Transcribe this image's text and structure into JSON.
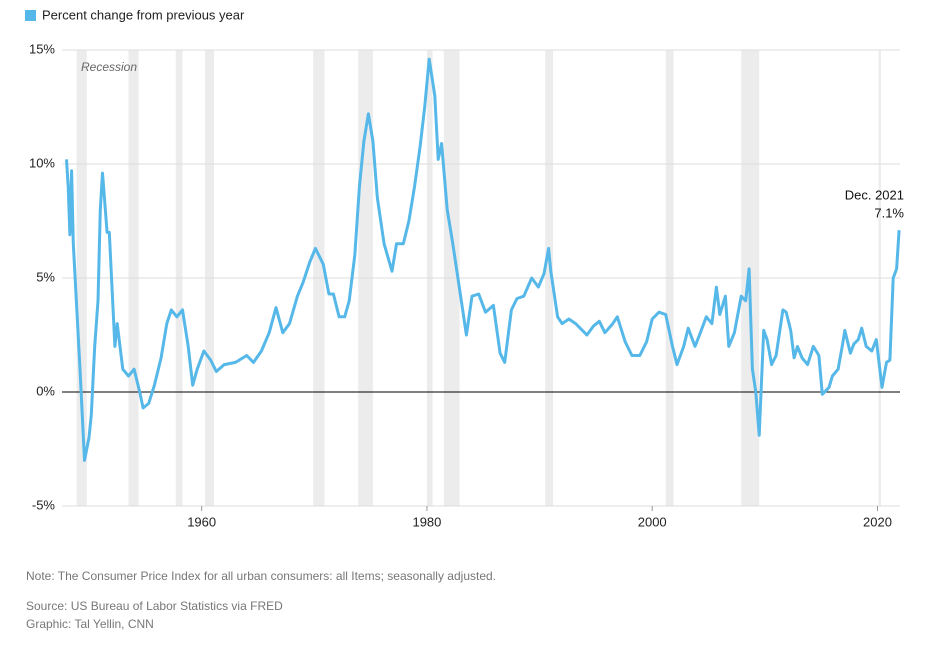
{
  "chart_data": {
    "type": "line",
    "legend_label": "Percent change from previous year",
    "series": [
      {
        "name": "Percent change from previous year",
        "color": "#56b8e8",
        "x": [
          1948.0,
          1948.15,
          1948.3,
          1948.45,
          1948.6,
          1949.2,
          1949.6,
          1950.0,
          1950.2,
          1950.5,
          1950.8,
          1951.0,
          1951.2,
          1951.6,
          1951.8,
          1952.3,
          1952.5,
          1953.0,
          1953.5,
          1954.0,
          1954.5,
          1954.8,
          1955.3,
          1955.8,
          1956.4,
          1956.9,
          1957.3,
          1957.8,
          1958.3,
          1958.8,
          1959.2,
          1959.6,
          1960.2,
          1960.8,
          1961.3,
          1962.0,
          1963.0,
          1964.0,
          1964.6,
          1965.3,
          1966.0,
          1966.6,
          1967.2,
          1967.8,
          1968.5,
          1969.0,
          1969.6,
          1970.1,
          1970.8,
          1971.3,
          1971.7,
          1972.2,
          1972.7,
          1973.1,
          1973.6,
          1974.0,
          1974.4,
          1974.8,
          1975.2,
          1975.6,
          1976.2,
          1976.9,
          1977.3,
          1977.9,
          1978.4,
          1978.9,
          1979.4,
          1979.8,
          1980.2,
          1980.7,
          1981.0,
          1981.3,
          1981.8,
          1982.3,
          1982.9,
          1983.5,
          1984.0,
          1984.6,
          1985.2,
          1985.9,
          1986.5,
          1986.9,
          1987.5,
          1988.0,
          1988.6,
          1989.3,
          1989.9,
          1990.4,
          1990.8,
          1991.0,
          1991.6,
          1992.0,
          1992.6,
          1993.2,
          1993.8,
          1994.2,
          1994.8,
          1995.3,
          1995.8,
          1996.5,
          1996.9,
          1997.6,
          1998.2,
          1998.9,
          1999.5,
          2000.0,
          2000.6,
          2001.2,
          2001.8,
          2002.2,
          2002.8,
          2003.2,
          2003.8,
          2004.2,
          2004.8,
          2005.3,
          2005.7,
          2006.0,
          2006.5,
          2006.8,
          2007.3,
          2007.9,
          2008.3,
          2008.6,
          2008.9,
          2009.2,
          2009.5,
          2009.9,
          2010.2,
          2010.6,
          2011.0,
          2011.6,
          2011.9,
          2012.3,
          2012.6,
          2012.9,
          2013.3,
          2013.8,
          2014.3,
          2014.8,
          2015.1,
          2015.7,
          2016.0,
          2016.5,
          2016.9,
          2017.1,
          2017.6,
          2017.9,
          2018.3,
          2018.6,
          2019.0,
          2019.5,
          2019.9,
          2020.4,
          2020.8,
          2021.1,
          2021.4,
          2021.7,
          2021.92
        ],
        "values": [
          10.2,
          9.0,
          6.9,
          9.7,
          6.5,
          1.0,
          -3.0,
          -2.0,
          -1.0,
          2.0,
          4.0,
          8.0,
          9.6,
          7.0,
          7.0,
          2.0,
          3.0,
          1.0,
          0.7,
          1.0,
          0.0,
          -0.7,
          -0.5,
          0.3,
          1.5,
          3.0,
          3.6,
          3.3,
          3.6,
          2.0,
          0.3,
          1.0,
          1.8,
          1.4,
          0.9,
          1.2,
          1.3,
          1.6,
          1.3,
          1.8,
          2.6,
          3.7,
          2.6,
          3.0,
          4.2,
          4.8,
          5.7,
          6.3,
          5.6,
          4.3,
          4.3,
          3.3,
          3.3,
          4.0,
          6.0,
          9.0,
          11.0,
          12.2,
          11.0,
          8.5,
          6.5,
          5.3,
          6.5,
          6.5,
          7.5,
          9.0,
          10.8,
          12.5,
          14.6,
          13.0,
          10.2,
          10.9,
          8.0,
          6.5,
          4.5,
          2.5,
          4.2,
          4.3,
          3.5,
          3.8,
          1.7,
          1.3,
          3.6,
          4.1,
          4.2,
          5.0,
          4.6,
          5.2,
          6.3,
          5.3,
          3.3,
          3.0,
          3.2,
          3.0,
          2.7,
          2.5,
          2.9,
          3.1,
          2.6,
          3.0,
          3.3,
          2.2,
          1.6,
          1.6,
          2.2,
          3.2,
          3.5,
          3.4,
          2.0,
          1.2,
          2.0,
          2.8,
          2.0,
          2.5,
          3.3,
          3.0,
          4.6,
          3.4,
          4.2,
          2.0,
          2.6,
          4.2,
          4.0,
          5.4,
          1.0,
          0.0,
          -1.9,
          2.7,
          2.3,
          1.2,
          1.6,
          3.6,
          3.5,
          2.7,
          1.5,
          2.0,
          1.5,
          1.2,
          2.0,
          1.6,
          -0.1,
          0.2,
          0.7,
          1.0,
          2.1,
          2.7,
          1.7,
          2.1,
          2.3,
          2.8,
          2.0,
          1.8,
          2.3,
          0.2,
          1.3,
          1.4,
          5.0,
          5.4,
          7.1
        ]
      }
    ],
    "recession_label": "Recession",
    "recessions": [
      [
        1948.9,
        1949.8
      ],
      [
        1953.5,
        1954.4
      ],
      [
        1957.7,
        1958.3
      ],
      [
        1960.3,
        1961.1
      ],
      [
        1969.9,
        1970.9
      ],
      [
        1973.9,
        1975.2
      ],
      [
        1980.0,
        1980.5
      ],
      [
        1981.5,
        1982.9
      ],
      [
        1990.5,
        1991.2
      ],
      [
        2001.2,
        2001.9
      ],
      [
        2007.9,
        2009.5
      ],
      [
        2020.1,
        2020.3
      ]
    ],
    "annotation": {
      "label": "Dec. 2021",
      "value": 7.1,
      "value_label": "7.1%"
    },
    "xlim": [
      1947.6,
      2022
    ],
    "xticks": [
      1960,
      1980,
      2000,
      2020
    ],
    "ylim": [
      -5,
      15
    ],
    "yticks": [
      {
        "value": -5,
        "label": "-5%"
      },
      {
        "value": 0,
        "label": "0%"
      },
      {
        "value": 5,
        "label": "5%"
      },
      {
        "value": 10,
        "label": "10%"
      },
      {
        "value": 15,
        "label": "15%"
      }
    ],
    "grid": true,
    "note": "Note: The Consumer Price Index for all urban consumers: all Items; seasonally adjusted.",
    "source": "Source: US Bureau of Labor Statistics via FRED",
    "credit": "Graphic: Tal Yellin, CNN"
  }
}
